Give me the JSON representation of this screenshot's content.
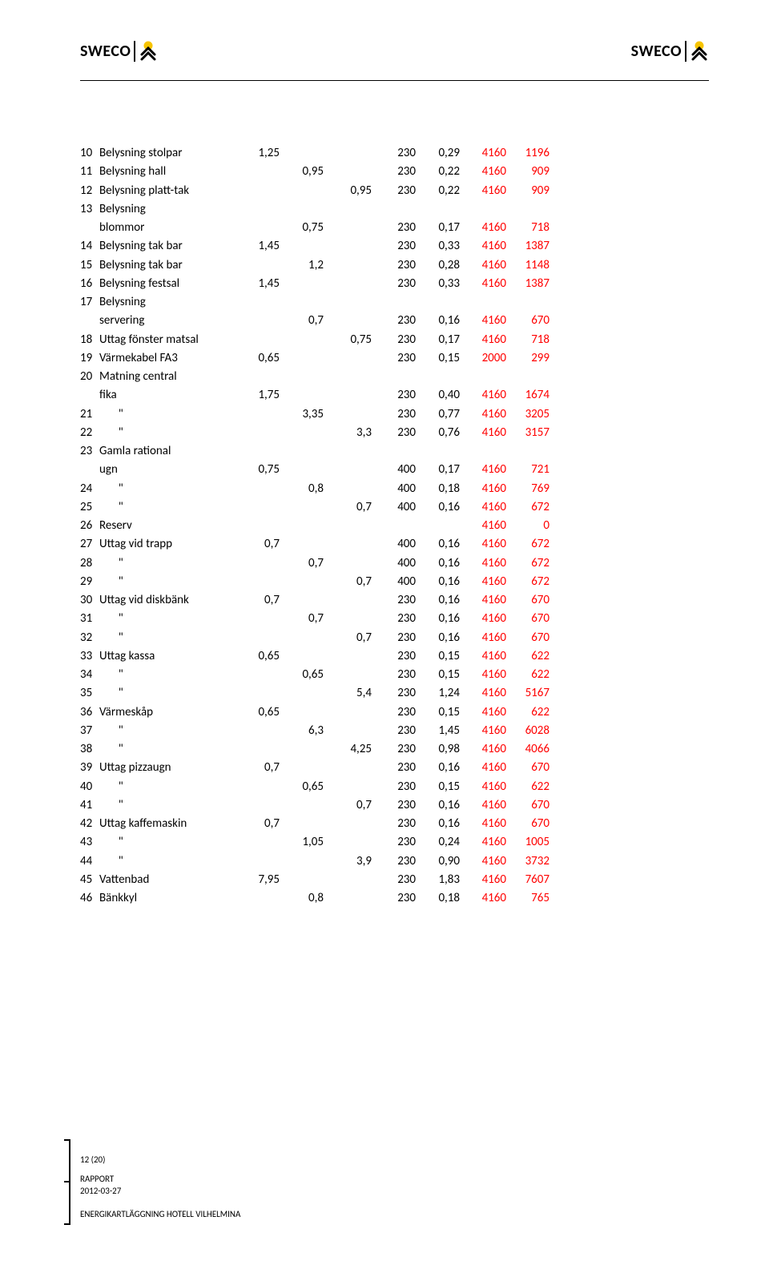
{
  "brand": "SWECO",
  "colors": {
    "text": "#000000",
    "accent": "#ff0000",
    "logo_yellow": "#f7c400",
    "logo_black": "#000000",
    "rule": "#000000",
    "bg": "#ffffff"
  },
  "columns": {
    "count": 10
  },
  "rows": [
    {
      "no": "10",
      "label": "Belysning stolpar",
      "v": [
        "1,25",
        "",
        "",
        "230",
        "0,29",
        "4160",
        "1196"
      ]
    },
    {
      "no": "11",
      "label": "Belysning hall",
      "v": [
        "",
        "0,95",
        "",
        "230",
        "0,22",
        "4160",
        "909"
      ]
    },
    {
      "no": "12",
      "label": "Belysning platt-tak",
      "v": [
        "",
        "",
        "0,95",
        "230",
        "0,22",
        "4160",
        "909"
      ]
    },
    {
      "cont": true,
      "no": "13",
      "label": "Belysning"
    },
    {
      "no": "",
      "label": "blommor",
      "v": [
        "",
        "0,75",
        "",
        "230",
        "0,17",
        "4160",
        "718"
      ]
    },
    {
      "no": "14",
      "label": "Belysning tak bar",
      "v": [
        "1,45",
        "",
        "",
        "230",
        "0,33",
        "4160",
        "1387"
      ]
    },
    {
      "no": "15",
      "label": "Belysning tak bar",
      "v": [
        "",
        "1,2",
        "",
        "230",
        "0,28",
        "4160",
        "1148"
      ]
    },
    {
      "no": "16",
      "label": "Belysning festsal",
      "v": [
        "1,45",
        "",
        "",
        "230",
        "0,33",
        "4160",
        "1387"
      ]
    },
    {
      "cont": true,
      "no": "17",
      "label": "Belysning"
    },
    {
      "no": "",
      "label": "servering",
      "v": [
        "",
        "0,7",
        "",
        "230",
        "0,16",
        "4160",
        "670"
      ]
    },
    {
      "no": "18",
      "label": "Uttag fönster matsal",
      "v": [
        "",
        "",
        "0,75",
        "230",
        "0,17",
        "4160",
        "718"
      ]
    },
    {
      "no": "19",
      "label": "Värmekabel FA3",
      "v": [
        "0,65",
        "",
        "",
        "230",
        "0,15",
        "2000",
        "299"
      ]
    },
    {
      "cont": true,
      "no": "20",
      "label": "Matning central"
    },
    {
      "no": "",
      "label": "fika",
      "v": [
        "1,75",
        "",
        "",
        "230",
        "0,40",
        "4160",
        "1674"
      ]
    },
    {
      "no": "21",
      "label": "       \"",
      "v": [
        "",
        "3,35",
        "",
        "230",
        "0,77",
        "4160",
        "3205"
      ]
    },
    {
      "no": "22",
      "label": "       \"",
      "v": [
        "",
        "",
        "3,3",
        "230",
        "0,76",
        "4160",
        "3157"
      ]
    },
    {
      "cont": true,
      "no": "23",
      "label": "Gamla rational"
    },
    {
      "no": "",
      "label": "ugn",
      "v": [
        "0,75",
        "",
        "",
        "400",
        "0,17",
        "4160",
        "721"
      ]
    },
    {
      "no": "24",
      "label": "       \"",
      "v": [
        "",
        "0,8",
        "",
        "400",
        "0,18",
        "4160",
        "769"
      ]
    },
    {
      "no": "25",
      "label": "       \"",
      "v": [
        "",
        "",
        "0,7",
        "400",
        "0,16",
        "4160",
        "672"
      ]
    },
    {
      "no": "26",
      "label": "Reserv",
      "v": [
        "",
        "",
        "",
        "",
        "",
        "4160",
        "0"
      ]
    },
    {
      "no": "27",
      "label": "Uttag vid trapp",
      "v": [
        "0,7",
        "",
        "",
        "400",
        "0,16",
        "4160",
        "672"
      ]
    },
    {
      "no": "28",
      "label": "       \"",
      "v": [
        "",
        "0,7",
        "",
        "400",
        "0,16",
        "4160",
        "672"
      ]
    },
    {
      "no": "29",
      "label": "       \"",
      "v": [
        "",
        "",
        "0,7",
        "400",
        "0,16",
        "4160",
        "672"
      ]
    },
    {
      "no": "30",
      "label": "Uttag vid diskbänk",
      "v": [
        "0,7",
        "",
        "",
        "230",
        "0,16",
        "4160",
        "670"
      ]
    },
    {
      "no": "31",
      "label": "       \"",
      "v": [
        "",
        "0,7",
        "",
        "230",
        "0,16",
        "4160",
        "670"
      ]
    },
    {
      "no": "32",
      "label": "       \"",
      "v": [
        "",
        "",
        "0,7",
        "230",
        "0,16",
        "4160",
        "670"
      ]
    },
    {
      "no": "33",
      "label": "Uttag kassa",
      "v": [
        "0,65",
        "",
        "",
        "230",
        "0,15",
        "4160",
        "622"
      ]
    },
    {
      "no": "34",
      "label": "       \"",
      "v": [
        "",
        "0,65",
        "",
        "230",
        "0,15",
        "4160",
        "622"
      ]
    },
    {
      "no": "35",
      "label": "       \"",
      "v": [
        "",
        "",
        "5,4",
        "230",
        "1,24",
        "4160",
        "5167"
      ]
    },
    {
      "no": "36",
      "label": "Värmeskåp",
      "v": [
        "0,65",
        "",
        "",
        "230",
        "0,15",
        "4160",
        "622"
      ]
    },
    {
      "no": "37",
      "label": "       \"",
      "v": [
        "",
        "6,3",
        "",
        "230",
        "1,45",
        "4160",
        "6028"
      ]
    },
    {
      "no": "38",
      "label": "       \"",
      "v": [
        "",
        "",
        "4,25",
        "230",
        "0,98",
        "4160",
        "4066"
      ]
    },
    {
      "no": "39",
      "label": "Uttag pizzaugn",
      "v": [
        "0,7",
        "",
        "",
        "230",
        "0,16",
        "4160",
        "670"
      ]
    },
    {
      "no": "40",
      "label": "       \"",
      "v": [
        "",
        "0,65",
        "",
        "230",
        "0,15",
        "4160",
        "622"
      ]
    },
    {
      "no": "41",
      "label": "       \"",
      "v": [
        "",
        "",
        "0,7",
        "230",
        "0,16",
        "4160",
        "670"
      ]
    },
    {
      "no": "42",
      "label": "Uttag kaffemaskin",
      "v": [
        "0,7",
        "",
        "",
        "230",
        "0,16",
        "4160",
        "670"
      ]
    },
    {
      "no": "43",
      "label": "       \"",
      "v": [
        "",
        "1,05",
        "",
        "230",
        "0,24",
        "4160",
        "1005"
      ]
    },
    {
      "no": "44",
      "label": "       \"",
      "v": [
        "",
        "",
        "3,9",
        "230",
        "0,90",
        "4160",
        "3732"
      ]
    },
    {
      "no": "45",
      "label": "Vattenbad",
      "v": [
        "7,95",
        "",
        "",
        "230",
        "1,83",
        "4160",
        "7607"
      ]
    },
    {
      "no": "46",
      "label": "Bänkkyl",
      "v": [
        "",
        "0,8",
        "",
        "230",
        "0,18",
        "4160",
        "765"
      ]
    }
  ],
  "footer": {
    "page": "12 (20)",
    "title": "RAPPORT",
    "date": "2012-03-27",
    "project": "ENERGIKARTLÄGGNING HOTELL VILHELMINA"
  }
}
